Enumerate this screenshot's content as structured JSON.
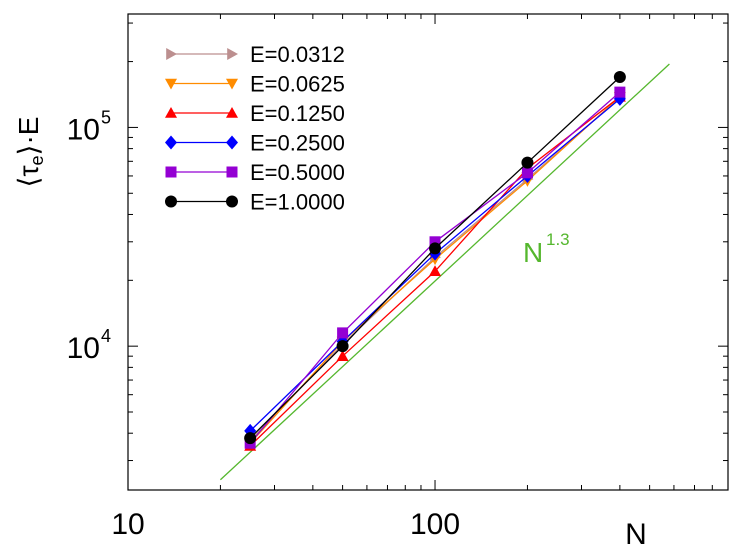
{
  "chart_data": {
    "type": "line",
    "xscale": "log",
    "yscale": "log",
    "xlim": [
      10,
      900
    ],
    "ylim": [
      2200,
      330000
    ],
    "xlabel": "N",
    "ylabel": {
      "open": "⟨",
      "symbol": "τ",
      "sub": "e",
      "close": "⟩·E"
    },
    "xticks": [
      {
        "value": 10,
        "label": "10"
      },
      {
        "value": 100,
        "label": "100"
      }
    ],
    "yticks": [
      {
        "value": 10000,
        "base": "10",
        "exp": "4"
      },
      {
        "value": 100000,
        "base": "10",
        "exp": "5"
      }
    ],
    "grid": false,
    "legend": "top-left",
    "x": [
      25,
      50,
      100,
      200,
      400
    ],
    "series": [
      {
        "name": "E=0.0312",
        "color": "#bc8f8f",
        "marker": "triangle-right",
        "values": [
          3700,
          10200,
          25500,
          58000,
          137000
        ]
      },
      {
        "name": "E=0.0625",
        "color": "#ff8c00",
        "marker": "triangle-down",
        "values": [
          3600,
          10500,
          25000,
          57000,
          138000
        ]
      },
      {
        "name": "E=0.1250",
        "color": "#ff0000",
        "marker": "triangle-up",
        "values": [
          3500,
          9000,
          22000,
          65000,
          138000
        ]
      },
      {
        "name": "E=0.2500",
        "color": "#0000ff",
        "marker": "diamond",
        "values": [
          4100,
          10500,
          26500,
          60000,
          135000
        ]
      },
      {
        "name": "E=0.5000",
        "color": "#9400d3",
        "marker": "square",
        "values": [
          3600,
          11500,
          30000,
          62000,
          145000
        ]
      },
      {
        "name": "E=1.0000",
        "color": "#000000",
        "marker": "circle",
        "values": [
          3800,
          10000,
          28000,
          69000,
          170000
        ]
      }
    ],
    "reference_line": {
      "label_base": "N",
      "label_exp": "1.3",
      "color": "#55b72e",
      "x": [
        20,
        580
      ],
      "y": [
        2450,
        195000
      ]
    }
  }
}
